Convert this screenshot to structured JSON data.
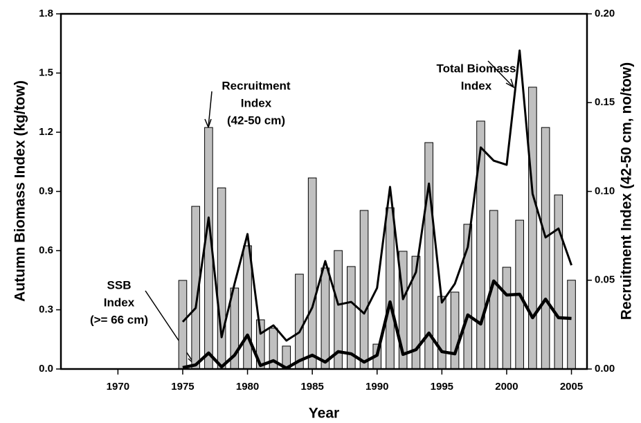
{
  "chart_data": {
    "type": "bar_line",
    "x_label": "Year",
    "y_label": "Autumn Biomass Index (kg/tow)",
    "y2_label": "Recruitment Index (42-50 cm, no/tow)",
    "xlim": [
      1965.6,
      2006.2
    ],
    "xticks": [
      1970,
      1975,
      1980,
      1985,
      1990,
      1995,
      2000,
      2005
    ],
    "ylim": [
      0,
      1.8
    ],
    "yticks": [
      {
        "value": 0,
        "label": "0.0"
      },
      0.3,
      0.6,
      0.9,
      1.2,
      1.5,
      1.8
    ],
    "y2lim": [
      0,
      0.2
    ],
    "y2ticks": [
      {
        "value": 0,
        "label": "0.00"
      },
      {
        "value": 0.05,
        "label": "0.05"
      },
      {
        "value": 0.1,
        "label": "0.10"
      },
      {
        "value": 0.15,
        "label": "0.15"
      },
      {
        "value": 0.2,
        "label": "0.20"
      }
    ],
    "x": [
      1975,
      1976,
      1977,
      1978,
      1979,
      1980,
      1981,
      1982,
      1983,
      1984,
      1985,
      1986,
      1987,
      1988,
      1989,
      1990,
      1991,
      1992,
      1993,
      1994,
      1995,
      1996,
      1997,
      1998,
      1999,
      2000,
      2001,
      2002,
      2003,
      2004,
      2005
    ],
    "series": [
      {
        "type": "bar",
        "axis": "y2",
        "color": "#c0c0c0",
        "values": [
          0.0499,
          0.0916,
          0.136,
          0.102,
          0.0456,
          0.0694,
          0.0277,
          0.023,
          0.0129,
          0.0534,
          0.1076,
          0.0569,
          0.0667,
          0.0577,
          0.0893,
          0.014,
          0.0908,
          0.0663,
          0.0635,
          0.1275,
          0.0409,
          0.0433,
          0.0815,
          0.1396,
          0.0893,
          0.0573,
          0.0838,
          0.1587,
          0.136,
          0.098,
          0.05
        ]
      },
      {
        "type": "line",
        "axis": "y",
        "color": "#000000",
        "width": 3,
        "values": [
          0.239,
          0.309,
          0.768,
          0.161,
          0.432,
          0.684,
          0.179,
          0.221,
          0.144,
          0.186,
          0.312,
          0.547,
          0.326,
          0.34,
          0.281,
          0.411,
          0.923,
          0.354,
          0.491,
          0.94,
          0.337,
          0.432,
          0.618,
          1.123,
          1.056,
          1.035,
          1.614,
          0.888,
          0.667,
          0.712,
          0.526
        ]
      },
      {
        "type": "line",
        "axis": "y",
        "color": "#000000",
        "width": 4.5,
        "values": [
          0.007,
          0.021,
          0.081,
          0.011,
          0.07,
          0.172,
          0.018,
          0.042,
          0.004,
          0.042,
          0.07,
          0.035,
          0.088,
          0.077,
          0.035,
          0.07,
          0.34,
          0.074,
          0.098,
          0.182,
          0.088,
          0.077,
          0.274,
          0.228,
          0.446,
          0.375,
          0.379,
          0.26,
          0.354,
          0.26,
          0.256
        ]
      }
    ],
    "annotations": [
      {
        "lines": [
          "Recruitment",
          "Index",
          "(42-50 cm)"
        ]
      },
      {
        "lines": [
          "Total Biomass",
          "Index"
        ]
      },
      {
        "lines": [
          "SSB",
          "Index",
          "(>= 66 cm)"
        ]
      }
    ]
  }
}
